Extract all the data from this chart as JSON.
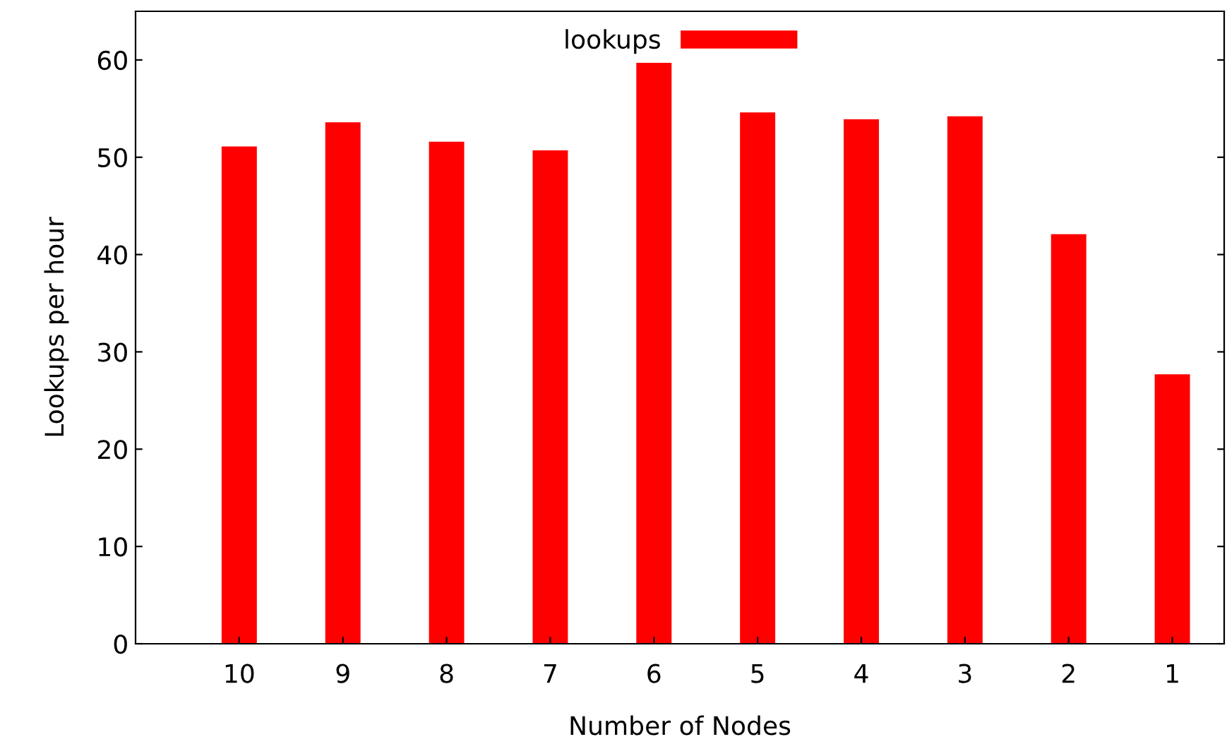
{
  "chart_data": {
    "type": "bar",
    "xlabel": "Number of Nodes",
    "ylabel": "Lookups per hour",
    "categories": [
      "10",
      "9",
      "8",
      "7",
      "6",
      "5",
      "4",
      "3",
      "2",
      "1"
    ],
    "series": [
      {
        "name": "lookups",
        "color": "#ff0000",
        "values": [
          51.1,
          53.6,
          51.6,
          50.7,
          59.7,
          54.6,
          53.9,
          54.2,
          42.1,
          27.7
        ]
      }
    ],
    "ylim": [
      0,
      65
    ],
    "yticks": [
      0,
      10,
      20,
      30,
      40,
      50,
      60
    ],
    "grid": false,
    "legend": "top"
  }
}
